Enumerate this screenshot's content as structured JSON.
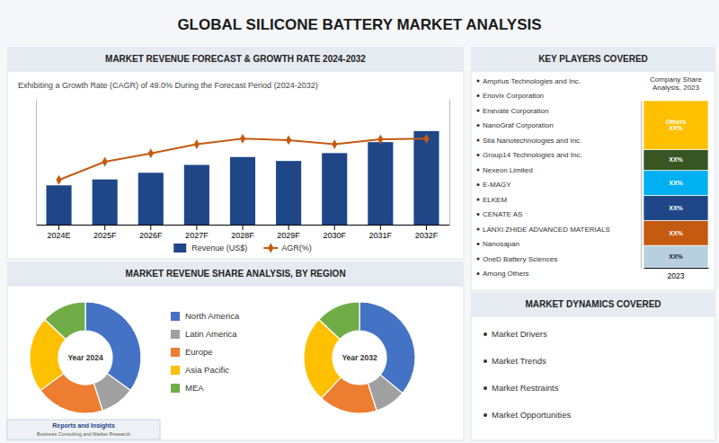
{
  "title": "GLOBAL SILICONE BATTERY MARKET ANALYSIS",
  "chart_data": [
    {
      "type": "bar",
      "title": "MARKET REVENUE FORECAST & GROWTH RATE 2024-2032",
      "subtitle": "Exhibiting a Growth Rate (CAGR) of 49.0% During the Forecast Period (2024-2032)",
      "categories": [
        "2024E",
        "2025F",
        "2026F",
        "2027F",
        "2028F",
        "2029F",
        "2030F",
        "2031F",
        "2032F"
      ],
      "series": [
        {
          "name": "Revenue (US$)",
          "type": "bar",
          "color": "#1f4788",
          "values": [
            1.0,
            1.15,
            1.32,
            1.52,
            1.72,
            1.62,
            1.82,
            2.1,
            2.38
          ]
        },
        {
          "name": "AGR(%)",
          "type": "line",
          "color": "#c55a11",
          "marker": "diamond",
          "axis": "y2",
          "values": [
            3.2,
            4.5,
            5.1,
            5.75,
            6.15,
            6.05,
            5.75,
            6.1,
            6.15
          ]
        }
      ],
      "ylim": [
        0,
        3.2
      ],
      "y2lim": [
        0,
        9
      ],
      "tick_labels": "x",
      "legend": "bottom",
      "grid": false
    },
    {
      "type": "donut",
      "title": "MARKET REVENUE SHARE ANALYSIS, BY REGION",
      "categories": [
        "North America",
        "Latin America",
        "Europe",
        "Asia Pacific",
        "MEA"
      ],
      "colors": [
        "#4472c4",
        "#a0a0a0",
        "#ed7d31",
        "#ffc000",
        "#70ad47"
      ],
      "series": [
        {
          "name": "Year 2024",
          "values": [
            35,
            10,
            20,
            22,
            13
          ]
        },
        {
          "name": "Year 2032",
          "values": [
            36,
            9,
            17,
            25,
            13
          ]
        }
      ],
      "legend": "center"
    },
    {
      "type": "bar",
      "stacked": true,
      "title": "Company Share\nAnalysis, 2023",
      "categories": [
        "2023"
      ],
      "series": [
        {
          "color": "#b8cfe0",
          "values": [
            0.8
          ],
          "value_labels": [
            "XX%"
          ]
        },
        {
          "color": "#c55a11",
          "values": [
            0.9
          ],
          "value_labels": [
            "XX%"
          ]
        },
        {
          "color": "#1f4788",
          "values": [
            0.9
          ],
          "value_labels": [
            "XX%"
          ]
        },
        {
          "color": "#00b0f0",
          "values": [
            0.9
          ],
          "value_labels": [
            "XX%"
          ]
        },
        {
          "color": "#375623",
          "values": [
            0.75
          ],
          "value_labels": [
            "XX%"
          ]
        },
        {
          "color": "#ffc000",
          "values": [
            1.75
          ],
          "value_labels": [
            "Others\nXX%"
          ]
        }
      ],
      "ylim": [
        0,
        6
      ],
      "data_labels": true,
      "tick_labels": "x"
    }
  ],
  "annotations": [
    {
      "title": "KEY PLAYERS COVERED",
      "items": [
        "Amprius Technologies and Inc.",
        "Enovix Corporation",
        "Enevate Corporation",
        "NanoGraf Corporation",
        "Sila Nanotechnologies and Inc.",
        "Group14 Technologies and Inc.",
        "Nexeon Limited",
        "E-MAGY",
        "ELKEM",
        "CENATE AS",
        "LANXI ZHIDE ADVANCED MATERIALS",
        "Nanosapan",
        "OneD Battery Sciences",
        "Among Others"
      ]
    },
    {
      "title": "MARKET DYNAMICS COVERED",
      "items": [
        "Market Drivers",
        "Market Trends",
        "Market Restraints",
        "Market Opportunities"
      ]
    },
    {
      "title": "Reports and Insights",
      "items": [
        "Business Consulting and Market Research"
      ]
    }
  ]
}
